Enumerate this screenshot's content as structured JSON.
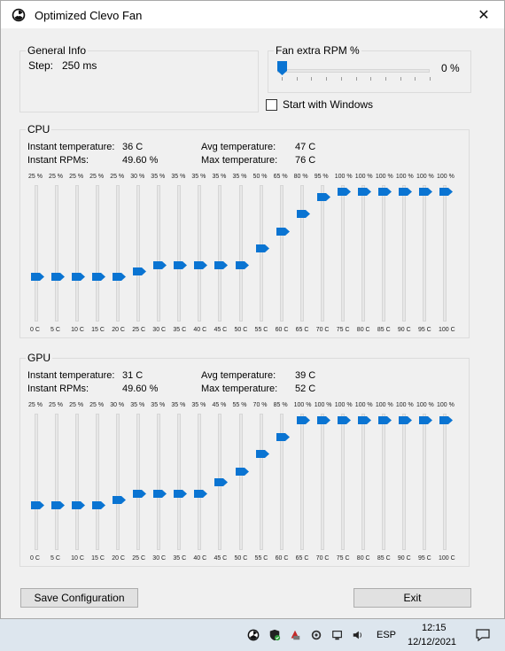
{
  "window": {
    "title": "Optimized Clevo Fan",
    "close_glyph": "✕"
  },
  "general": {
    "group_label": "General Info",
    "step_label": "Step:",
    "step_value": "250 ms"
  },
  "fan_extra": {
    "group_label": "Fan extra RPM %",
    "value": 0,
    "value_label": "0 %",
    "checkbox_label": "Start with Windows",
    "checked": false
  },
  "cpu": {
    "group_label": "CPU",
    "instant_temperature_label": "Instant temperature:",
    "instant_temperature": "36 C",
    "instant_rpms_label": "Instant RPMs:",
    "instant_rpms": "49.60 %",
    "avg_temperature_label": "Avg temperature:",
    "avg_temperature": "47 C",
    "max_temperature_label": "Max temperature:",
    "max_temperature": "76 C",
    "temps": [
      "0 C",
      "5 C",
      "10 C",
      "15 C",
      "20 C",
      "25 C",
      "30 C",
      "35 C",
      "40 C",
      "45 C",
      "50 C",
      "55 C",
      "60 C",
      "65 C",
      "70 C",
      "75 C",
      "80 C",
      "85 C",
      "90 C",
      "95 C",
      "100 C"
    ],
    "percent_labels": [
      "25 %",
      "25 %",
      "25 %",
      "25 %",
      "25 %",
      "30 %",
      "35 %",
      "35 %",
      "35 %",
      "35 %",
      "35 %",
      "50 %",
      "65 %",
      "80 %",
      "95 %",
      "100 %",
      "100 %",
      "100 %",
      "100 %",
      "100 %",
      "100 %"
    ],
    "values": [
      25,
      25,
      25,
      25,
      25,
      30,
      35,
      35,
      35,
      35,
      35,
      50,
      65,
      80,
      95,
      100,
      100,
      100,
      100,
      100,
      100
    ]
  },
  "gpu": {
    "group_label": "GPU",
    "instant_temperature_label": "Instant temperature:",
    "instant_temperature": "31 C",
    "instant_rpms_label": "Instant RPMs:",
    "instant_rpms": "49.60 %",
    "avg_temperature_label": "Avg temperature:",
    "avg_temperature": "39 C",
    "max_temperature_label": "Max temperature:",
    "max_temperature": "52 C",
    "temps": [
      "0 C",
      "5 C",
      "10 C",
      "15 C",
      "20 C",
      "25 C",
      "30 C",
      "35 C",
      "40 C",
      "45 C",
      "50 C",
      "55 C",
      "60 C",
      "65 C",
      "70 C",
      "75 C",
      "80 C",
      "85 C",
      "90 C",
      "95 C",
      "100 C"
    ],
    "percent_labels": [
      "25 %",
      "25 %",
      "25 %",
      "25 %",
      "30 %",
      "35 %",
      "35 %",
      "35 %",
      "35 %",
      "45 %",
      "55 %",
      "70 %",
      "85 %",
      "100 %",
      "100 %",
      "100 %",
      "100 %",
      "100 %",
      "100 %",
      "100 %",
      "100 %"
    ],
    "values": [
      25,
      25,
      25,
      25,
      30,
      35,
      35,
      35,
      35,
      45,
      55,
      70,
      85,
      100,
      100,
      100,
      100,
      100,
      100,
      100,
      100
    ]
  },
  "buttons": {
    "save": "Save Configuration",
    "exit": "Exit"
  },
  "taskbar": {
    "language": "ESP",
    "time": "12:15",
    "date": "12/12/2021",
    "icons": [
      "fan-app-icon",
      "security-icon",
      "recording-icon",
      "network-icon",
      "display-icon",
      "volume-icon",
      "notification-icon"
    ]
  },
  "colors": {
    "thumb": "#0a74d2",
    "window_bg": "#f0f0f0",
    "taskbar_bg": "#dde6ee"
  }
}
